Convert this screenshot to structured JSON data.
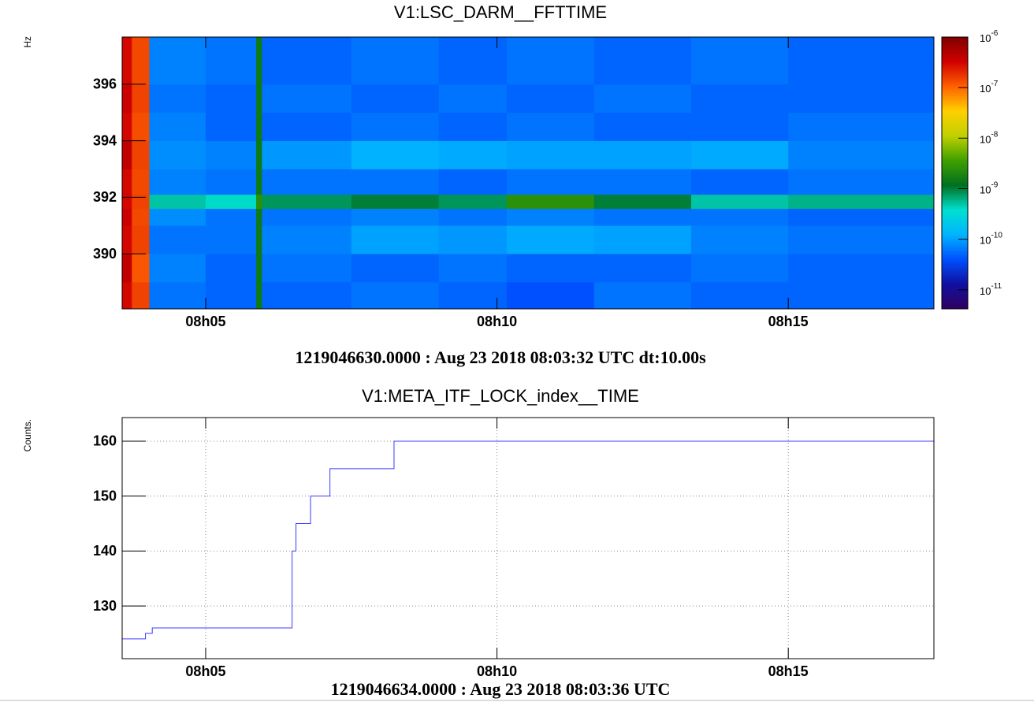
{
  "chart_data": [
    {
      "type": "heatmap",
      "title": "V1:LSC_DARM__FFTTIME",
      "ylabel": "Hz",
      "xlabel": "1219046630.0000 : Aug 23 2018 08:03:32 UTC dt:10.00s",
      "x_edges": [
        29014,
        29024,
        29042,
        29100,
        29152,
        29158,
        29250,
        29340,
        29410,
        29500,
        29600,
        29700,
        29850
      ],
      "y_edges": [
        388.05,
        389,
        390,
        391,
        391.6,
        392.1,
        393,
        394,
        395,
        396,
        397.67
      ],
      "z": [
        [
          3e-07,
          1.5e-07,
          6e-11,
          5e-11,
          1.5e-09,
          5e-11,
          6e-11,
          5e-11,
          4e-11,
          6e-11,
          5e-11,
          5e-11
        ],
        [
          4e-07,
          1.2e-07,
          7e-11,
          5e-11,
          1.5e-09,
          6e-11,
          5e-11,
          6e-11,
          5e-11,
          5e-11,
          6e-11,
          5e-11
        ],
        [
          3e-07,
          1.5e-07,
          6e-11,
          6e-11,
          1.5e-09,
          7e-11,
          1e-10,
          9e-11,
          1.1e-10,
          1e-10,
          7e-11,
          6e-11
        ],
        [
          3.5e-07,
          1.4e-07,
          8e-11,
          6e-11,
          1.5e-09,
          6e-11,
          7e-11,
          6e-11,
          7e-11,
          6e-11,
          6e-11,
          5e-11
        ],
        [
          3e-07,
          1.5e-07,
          5e-10,
          4e-10,
          2.5e-09,
          8e-10,
          1e-09,
          8e-10,
          2.5e-09,
          1e-09,
          5e-10,
          6e-10
        ],
        [
          3e-07,
          1.4e-07,
          7e-11,
          6e-11,
          1.5e-09,
          6e-11,
          6e-11,
          5e-11,
          6e-11,
          6e-11,
          5e-11,
          6e-11
        ],
        [
          4e-07,
          1.5e-07,
          8e-11,
          7e-11,
          1.5e-09,
          9e-11,
          1.2e-10,
          1.1e-10,
          1e-10,
          1e-10,
          1.1e-10,
          7e-11
        ],
        [
          3e-07,
          1.3e-07,
          7e-11,
          5e-11,
          1.5e-09,
          5e-11,
          6e-11,
          5e-11,
          6e-11,
          5e-11,
          5e-11,
          6e-11
        ],
        [
          3.5e-07,
          1.5e-07,
          6e-11,
          5e-11,
          1.5e-09,
          6e-11,
          5e-11,
          6e-11,
          5e-11,
          6e-11,
          5e-11,
          5e-11
        ],
        [
          3e-07,
          1.4e-07,
          7e-11,
          6e-11,
          1.5e-09,
          5e-11,
          6e-11,
          5e-11,
          6e-11,
          5e-11,
          6e-11,
          5e-11
        ]
      ],
      "xlim": [
        29014,
        29850
      ],
      "xticks": [
        {
          "value": 29100,
          "label": "08h05"
        },
        {
          "value": 29400,
          "label": "08h10"
        },
        {
          "value": 29700,
          "label": "08h15"
        }
      ],
      "ylim": [
        388.05,
        397.67
      ],
      "yticks": [
        390,
        392,
        394,
        396
      ],
      "zlim": [
        4.2e-12,
        1e-06
      ],
      "zlog": true,
      "zticks": [
        {
          "value": 1e-06,
          "label": "10",
          "exponent": "-6"
        },
        {
          "value": 1e-07,
          "label": "10",
          "exponent": "-7"
        },
        {
          "value": 1e-08,
          "label": "10",
          "exponent": "-8"
        },
        {
          "value": 1e-09,
          "label": "10",
          "exponent": "-9"
        },
        {
          "value": 1e-10,
          "label": "10",
          "exponent": "-10"
        },
        {
          "value": 1e-11,
          "label": "10",
          "exponent": "-11"
        }
      ],
      "colormap": [
        "#300060",
        "#1010a0",
        "#0050ff",
        "#00b4ff",
        "#00e0d0",
        "#007020",
        "#40a000",
        "#c0d000",
        "#ffd000",
        "#ff6000",
        "#d00000",
        "#800000"
      ],
      "grid": false
    },
    {
      "type": "step",
      "title": "V1:META_ITF_LOCK_index__TIME",
      "ylabel": "Counts.",
      "xlabel": "1219046634.0000 : Aug 23 2018 08:03:36 UTC",
      "x": [
        29014,
        29038,
        29045,
        29189,
        29193,
        29208,
        29228,
        29294,
        29850
      ],
      "values": [
        124,
        125,
        126,
        140,
        145,
        150,
        155,
        160,
        160
      ],
      "color": "#3c3cff",
      "xlim": [
        29014,
        29850
      ],
      "xticks": [
        {
          "value": 29100,
          "label": "08h05"
        },
        {
          "value": 29400,
          "label": "08h10"
        },
        {
          "value": 29700,
          "label": "08h15"
        }
      ],
      "ylim": [
        120.4,
        164.3
      ],
      "yticks": [
        130,
        140,
        150,
        160
      ],
      "grid": true
    }
  ]
}
